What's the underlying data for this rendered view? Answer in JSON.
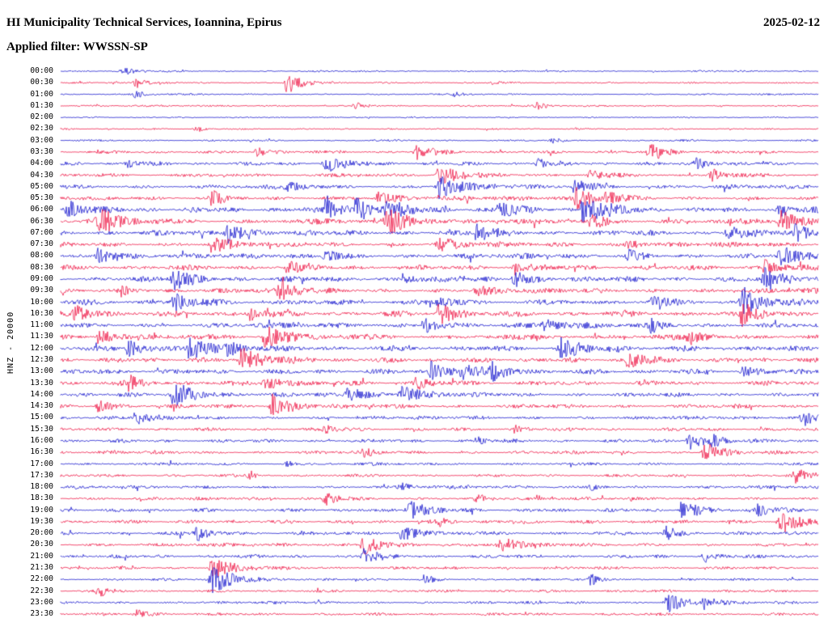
{
  "header": {
    "title": "HI Municipality Technical Services, Ioannina, Epirus",
    "date": "2025-02-12",
    "filter_line": "Applied filter: WWSSN-SP"
  },
  "axis": {
    "left_label": "HNZ - 20000"
  },
  "chart_data": {
    "type": "line",
    "subtype": "helicorder-seismogram",
    "title": "HI Municipality Technical Services, Ioannina, Epirus",
    "date": "2025-02-12",
    "filter": "WWSSN-SP",
    "channel": "HNZ",
    "scale": 20000,
    "minutes_per_row": 30,
    "legend_position": "none",
    "grid": false,
    "colors": {
      "blue": "#1212cc",
      "red": "#ee1040"
    },
    "rows": [
      {
        "label": "00:00",
        "color": "blue",
        "noise": 1.2,
        "bursts": [
          [
            0.085,
            5,
            3
          ]
        ]
      },
      {
        "label": "00:30",
        "color": "red",
        "noise": 1.2,
        "bursts": [
          [
            0.1,
            7,
            4
          ],
          [
            0.3,
            17,
            5
          ],
          [
            0.57,
            3,
            3
          ]
        ]
      },
      {
        "label": "01:00",
        "color": "blue",
        "noise": 1.2,
        "bursts": [
          [
            0.1,
            5,
            3
          ],
          [
            0.52,
            3,
            3
          ]
        ]
      },
      {
        "label": "01:30",
        "color": "red",
        "noise": 1.3,
        "bursts": [
          [
            0.39,
            7,
            4
          ],
          [
            0.63,
            5,
            3
          ]
        ]
      },
      {
        "label": "02:00",
        "color": "blue",
        "noise": 1.0,
        "bursts": []
      },
      {
        "label": "02:30",
        "color": "red",
        "noise": 1.1,
        "bursts": [
          [
            0.18,
            4,
            3
          ]
        ]
      },
      {
        "label": "03:00",
        "color": "blue",
        "noise": 1.4,
        "bursts": [
          [
            0.65,
            3,
            3
          ]
        ]
      },
      {
        "label": "03:30",
        "color": "red",
        "noise": 2.2,
        "bursts": [
          [
            0.26,
            6,
            5
          ],
          [
            0.47,
            9,
            6
          ],
          [
            0.78,
            10,
            6
          ]
        ]
      },
      {
        "label": "04:00",
        "color": "blue",
        "noise": 2.6,
        "bursts": [
          [
            0.09,
            5,
            4
          ],
          [
            0.35,
            11,
            7
          ],
          [
            0.63,
            6,
            5
          ],
          [
            0.84,
            7,
            5
          ]
        ]
      },
      {
        "label": "04:30",
        "color": "red",
        "noise": 2.6,
        "bursts": [
          [
            0.5,
            13,
            7
          ],
          [
            0.7,
            6,
            4
          ],
          [
            0.86,
            9,
            5
          ]
        ]
      },
      {
        "label": "05:00",
        "color": "blue",
        "noise": 3.0,
        "bursts": [
          [
            0.3,
            7,
            5
          ],
          [
            0.5,
            15,
            8
          ],
          [
            0.68,
            11,
            6
          ]
        ]
      },
      {
        "label": "05:30",
        "color": "red",
        "noise": 3.2,
        "bursts": [
          [
            0.2,
            9,
            6
          ],
          [
            0.42,
            7,
            5
          ],
          [
            0.68,
            13,
            8
          ],
          [
            0.72,
            10,
            6
          ]
        ]
      },
      {
        "label": "06:00",
        "color": "blue",
        "noise": 3.8,
        "bursts": [
          [
            0.01,
            11,
            6
          ],
          [
            0.35,
            13,
            7
          ],
          [
            0.39,
            15,
            8
          ],
          [
            0.43,
            13,
            7
          ],
          [
            0.58,
            11,
            6
          ],
          [
            0.69,
            17,
            9
          ],
          [
            0.95,
            8,
            5
          ]
        ]
      },
      {
        "label": "06:30",
        "color": "red",
        "noise": 3.8,
        "bursts": [
          [
            0.05,
            15,
            8
          ],
          [
            0.43,
            17,
            9
          ],
          [
            0.7,
            9,
            6
          ],
          [
            0.95,
            13,
            7
          ]
        ]
      },
      {
        "label": "07:00",
        "color": "blue",
        "noise": 3.8,
        "bursts": [
          [
            0.22,
            13,
            7
          ],
          [
            0.55,
            11,
            6
          ],
          [
            0.88,
            11,
            6
          ],
          [
            0.97,
            9,
            5
          ]
        ]
      },
      {
        "label": "07:30",
        "color": "red",
        "noise": 3.6,
        "bursts": [
          [
            0.2,
            11,
            6
          ],
          [
            0.5,
            9,
            6
          ],
          [
            0.75,
            7,
            5
          ]
        ]
      },
      {
        "label": "08:00",
        "color": "blue",
        "noise": 3.6,
        "bursts": [
          [
            0.05,
            11,
            6
          ],
          [
            0.35,
            9,
            5
          ],
          [
            0.75,
            9,
            5
          ],
          [
            0.95,
            11,
            6
          ]
        ]
      },
      {
        "label": "08:30",
        "color": "red",
        "noise": 3.6,
        "bursts": [
          [
            0.3,
            7,
            5
          ],
          [
            0.6,
            7,
            5
          ],
          [
            0.93,
            9,
            6
          ]
        ]
      },
      {
        "label": "09:00",
        "color": "blue",
        "noise": 3.8,
        "bursts": [
          [
            0.15,
            13,
            7
          ],
          [
            0.45,
            7,
            5
          ],
          [
            0.6,
            11,
            6
          ],
          [
            0.93,
            13,
            7
          ]
        ]
      },
      {
        "label": "09:30",
        "color": "red",
        "noise": 3.6,
        "bursts": [
          [
            0.08,
            7,
            5
          ],
          [
            0.29,
            11,
            7
          ],
          [
            0.55,
            7,
            5
          ]
        ]
      },
      {
        "label": "10:00",
        "color": "blue",
        "noise": 3.8,
        "bursts": [
          [
            0.15,
            11,
            6
          ],
          [
            0.5,
            7,
            5
          ],
          [
            0.78,
            7,
            5
          ],
          [
            0.9,
            15,
            8
          ]
        ]
      },
      {
        "label": "10:30",
        "color": "red",
        "noise": 3.8,
        "bursts": [
          [
            0.02,
            11,
            6
          ],
          [
            0.25,
            9,
            5
          ],
          [
            0.5,
            13,
            7
          ],
          [
            0.9,
            13,
            7
          ]
        ]
      },
      {
        "label": "11:00",
        "color": "blue",
        "noise": 3.8,
        "bursts": [
          [
            0.48,
            11,
            6
          ],
          [
            0.64,
            7,
            5
          ],
          [
            0.78,
            9,
            5
          ]
        ]
      },
      {
        "label": "11:30",
        "color": "red",
        "noise": 3.8,
        "bursts": [
          [
            0.05,
            11,
            6
          ],
          [
            0.27,
            15,
            8
          ],
          [
            0.83,
            9,
            5
          ]
        ]
      },
      {
        "label": "12:00",
        "color": "blue",
        "noise": 3.8,
        "bursts": [
          [
            0.09,
            11,
            6
          ],
          [
            0.17,
            13,
            7
          ],
          [
            0.22,
            11,
            6
          ],
          [
            0.66,
            13,
            7
          ]
        ]
      },
      {
        "label": "12:30",
        "color": "red",
        "noise": 3.6,
        "bursts": [
          [
            0.24,
            17,
            8
          ],
          [
            0.75,
            11,
            6
          ]
        ]
      },
      {
        "label": "13:00",
        "color": "blue",
        "noise": 3.6,
        "bursts": [
          [
            0.49,
            13,
            7
          ],
          [
            0.53,
            11,
            6
          ],
          [
            0.57,
            11,
            6
          ],
          [
            0.9,
            7,
            5
          ]
        ]
      },
      {
        "label": "13:30",
        "color": "red",
        "noise": 3.4,
        "bursts": [
          [
            0.09,
            9,
            5
          ],
          [
            0.27,
            11,
            6
          ],
          [
            0.47,
            7,
            5
          ]
        ]
      },
      {
        "label": "14:00",
        "color": "blue",
        "noise": 3.0,
        "bursts": [
          [
            0.15,
            17,
            8
          ],
          [
            0.38,
            11,
            6
          ],
          [
            0.45,
            13,
            7
          ]
        ]
      },
      {
        "label": "14:30",
        "color": "red",
        "noise": 2.8,
        "bursts": [
          [
            0.05,
            9,
            5
          ],
          [
            0.28,
            15,
            8
          ]
        ]
      },
      {
        "label": "15:00",
        "color": "blue",
        "noise": 2.6,
        "bursts": [
          [
            0.1,
            9,
            5
          ],
          [
            0.98,
            11,
            6
          ]
        ]
      },
      {
        "label": "15:30",
        "color": "red",
        "noise": 2.4,
        "bursts": [
          [
            0.35,
            5,
            4
          ],
          [
            0.6,
            5,
            4
          ]
        ]
      },
      {
        "label": "16:00",
        "color": "blue",
        "noise": 2.4,
        "bursts": [
          [
            0.55,
            5,
            4
          ],
          [
            0.83,
            11,
            6
          ],
          [
            0.86,
            9,
            5
          ]
        ]
      },
      {
        "label": "16:30",
        "color": "red",
        "noise": 2.4,
        "bursts": [
          [
            0.4,
            5,
            4
          ],
          [
            0.85,
            13,
            7
          ]
        ]
      },
      {
        "label": "17:00",
        "color": "blue",
        "noise": 2.0,
        "bursts": [
          [
            0.3,
            4,
            3
          ]
        ]
      },
      {
        "label": "17:30",
        "color": "red",
        "noise": 2.0,
        "bursts": [
          [
            0.25,
            4,
            3
          ],
          [
            0.97,
            9,
            5
          ]
        ]
      },
      {
        "label": "18:00",
        "color": "blue",
        "noise": 2.2,
        "bursts": [
          [
            0.45,
            5,
            4
          ],
          [
            0.7,
            5,
            4
          ]
        ]
      },
      {
        "label": "18:30",
        "color": "red",
        "noise": 2.2,
        "bursts": [
          [
            0.35,
            9,
            6
          ],
          [
            0.55,
            5,
            4
          ]
        ]
      },
      {
        "label": "19:00",
        "color": "blue",
        "noise": 2.6,
        "bursts": [
          [
            0.46,
            13,
            7
          ],
          [
            0.82,
            11,
            6
          ],
          [
            0.92,
            9,
            5
          ]
        ]
      },
      {
        "label": "19:30",
        "color": "red",
        "noise": 2.6,
        "bursts": [
          [
            0.5,
            5,
            4
          ],
          [
            0.95,
            15,
            8
          ]
        ]
      },
      {
        "label": "20:00",
        "color": "blue",
        "noise": 2.6,
        "bursts": [
          [
            0.18,
            9,
            5
          ],
          [
            0.45,
            11,
            6
          ],
          [
            0.8,
            9,
            5
          ]
        ]
      },
      {
        "label": "20:30",
        "color": "red",
        "noise": 2.6,
        "bursts": [
          [
            0.4,
            13,
            7
          ],
          [
            0.58,
            11,
            6
          ]
        ]
      },
      {
        "label": "21:00",
        "color": "blue",
        "noise": 2.4,
        "bursts": [
          [
            0.4,
            9,
            5
          ],
          [
            0.85,
            7,
            5
          ]
        ]
      },
      {
        "label": "21:30",
        "color": "red",
        "noise": 2.0,
        "bursts": [
          [
            0.2,
            15,
            8
          ]
        ]
      },
      {
        "label": "22:00",
        "color": "blue",
        "noise": 1.6,
        "bursts": [
          [
            0.2,
            19,
            9
          ],
          [
            0.48,
            7,
            4
          ],
          [
            0.7,
            7,
            4
          ]
        ]
      },
      {
        "label": "22:30",
        "color": "red",
        "noise": 2.0,
        "bursts": [
          [
            0.05,
            7,
            4
          ]
        ]
      },
      {
        "label": "23:00",
        "color": "blue",
        "noise": 2.0,
        "bursts": [
          [
            0.8,
            13,
            7
          ],
          [
            0.85,
            9,
            5
          ]
        ]
      },
      {
        "label": "23:30",
        "color": "red",
        "noise": 2.0,
        "bursts": [
          [
            0.1,
            7,
            4
          ]
        ]
      }
    ]
  }
}
